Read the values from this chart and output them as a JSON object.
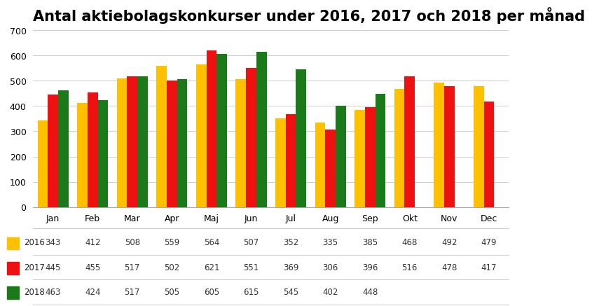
{
  "title": "Antal aktiebolagskonkurser under 2016, 2017 och 2018 per månad",
  "months": [
    "Jan",
    "Feb",
    "Mar",
    "Apr",
    "Maj",
    "Jun",
    "Jul",
    "Aug",
    "Sep",
    "Okt",
    "Nov",
    "Dec"
  ],
  "series": {
    "2016": [
      343,
      412,
      508,
      559,
      564,
      507,
      352,
      335,
      385,
      468,
      492,
      479
    ],
    "2017": [
      445,
      455,
      517,
      502,
      621,
      551,
      369,
      306,
      396,
      516,
      478,
      417
    ],
    "2018": [
      463,
      424,
      517,
      505,
      605,
      615,
      545,
      402,
      448,
      null,
      null,
      null
    ]
  },
  "colors": {
    "2016": "#FFC000",
    "2017": "#EE1111",
    "2018": "#1A7A1A"
  },
  "ylim": [
    0,
    700
  ],
  "yticks": [
    0,
    100,
    200,
    300,
    400,
    500,
    600,
    700
  ],
  "background_color": "#FFFFFF",
  "title_fontsize": 15,
  "bar_width": 0.26,
  "series_keys": [
    "2016",
    "2017",
    "2018"
  ]
}
